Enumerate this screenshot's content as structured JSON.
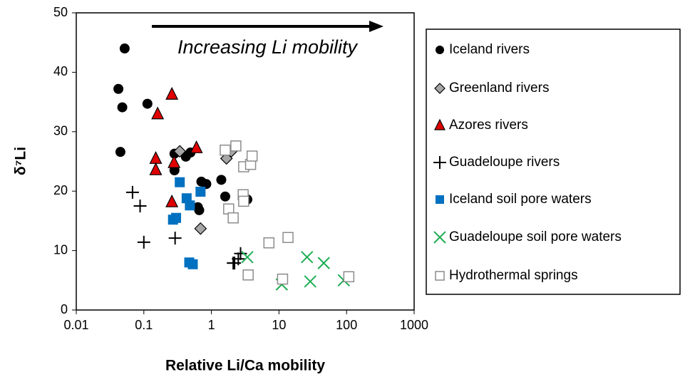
{
  "chart_data": {
    "type": "scatter",
    "xlabel": "Relative Li/Ca mobility",
    "ylabel": "δ⁷Li",
    "annotation": "Increasing Li mobility",
    "xscale": "log",
    "xlim": [
      0.01,
      1000
    ],
    "xticks": [
      0.01,
      0.1,
      1,
      10,
      100,
      1000
    ],
    "ylim": [
      0,
      50
    ],
    "yticks": [
      0,
      10,
      20,
      30,
      40,
      50
    ],
    "legend": "right",
    "series": [
      {
        "name": "Iceland rivers",
        "marker": "circle",
        "color": "#000000",
        "x": [
          0.052,
          0.042,
          0.048,
          0.045,
          0.113,
          0.284,
          0.418,
          0.49,
          0.284,
          0.71,
          0.84,
          0.66,
          0.63,
          1.4,
          1.6,
          3.4
        ],
        "y": [
          44,
          37.2,
          34.1,
          26.6,
          34.7,
          26.3,
          25.8,
          26.5,
          23.5,
          21.6,
          21.2,
          16.8,
          17.3,
          21.9,
          19.1,
          18.6
        ]
      },
      {
        "name": "Greenland rivers",
        "marker": "diamond",
        "color": "#a6a6a6",
        "x": [
          0.34,
          0.69,
          1.67,
          1.97
        ],
        "y": [
          26.7,
          13.7,
          25.5,
          26.7
        ]
      },
      {
        "name": "Azores rivers",
        "marker": "triangle",
        "color": "#e00000",
        "x": [
          0.26,
          0.16,
          0.15,
          0.15,
          0.28,
          0.6,
          0.26
        ],
        "y": [
          36.3,
          33,
          25.5,
          23.6,
          24.8,
          27.3,
          18.2
        ]
      },
      {
        "name": "Guadeloupe rivers",
        "marker": "plus",
        "color": "#000000",
        "x": [
          0.068,
          0.088,
          0.1,
          0.29,
          2.2,
          2.5,
          2.1,
          2.7
        ],
        "y": [
          19.8,
          17.5,
          11.4,
          12.1,
          7.9,
          8.6,
          7.9,
          9.5
        ]
      },
      {
        "name": "Iceland soil pore waters",
        "marker": "square",
        "color": "#0070c0",
        "x": [
          0.34,
          0.43,
          0.48,
          0.69,
          0.27,
          0.3,
          0.47,
          0.53
        ],
        "y": [
          21.5,
          18.8,
          17.6,
          19.9,
          15.2,
          15.5,
          8,
          7.7
        ]
      },
      {
        "name": "Guadeloupe soil pore waters",
        "marker": "cross",
        "color": "#1fae54",
        "x": [
          3.4,
          11,
          26,
          29,
          46,
          91
        ],
        "y": [
          8.9,
          4.3,
          8.9,
          4.8,
          7.9,
          5
        ]
      },
      {
        "name": "Hydrothermal springs",
        "marker": "opensquare",
        "color": "#8c8c8c",
        "x": [
          1.6,
          2.3,
          3,
          3.8,
          4,
          1.8,
          2.1,
          2.95,
          3,
          7.1,
          13.6,
          3.5,
          11.3,
          108
        ],
        "y": [
          26.9,
          27.6,
          24.1,
          24.5,
          25.9,
          17,
          15.5,
          19.4,
          18.3,
          11.3,
          12.2,
          5.9,
          5.2,
          5.6
        ]
      }
    ]
  }
}
